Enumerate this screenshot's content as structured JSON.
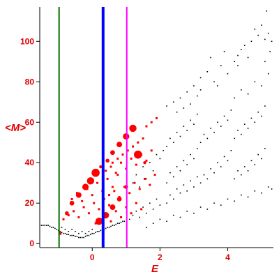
{
  "chart_data": {
    "type": "scatter",
    "xlabel": "E",
    "ylabel": "<M>",
    "xlim": [
      -1.55,
      5.35
    ],
    "ylim": [
      -2,
      117
    ],
    "xticks": [
      0,
      2,
      4
    ],
    "yticks": [
      0,
      20,
      40,
      60,
      80,
      100
    ],
    "grid": false,
    "legend": "none",
    "vlines": [
      {
        "x": -0.98,
        "color": "#007000",
        "width": "thin"
      },
      {
        "x": 0.32,
        "color": "#0000ff",
        "width": "thick"
      },
      {
        "x": 1.02,
        "color": "#ff00ff",
        "width": "thin"
      }
    ],
    "series": [
      {
        "marker": "black-dot",
        "color": "#000000",
        "description_of_spread": "fan-shaped cloud; low-E tail near M≈5-9, band widening with E",
        "points": [
          [
            -1.5,
            9
          ],
          [
            -1.45,
            9
          ],
          [
            -1.4,
            9
          ],
          [
            -1.35,
            9
          ],
          [
            -1.3,
            9
          ],
          [
            -1.25,
            8.5
          ],
          [
            -1.2,
            8
          ],
          [
            -1.15,
            8
          ],
          [
            -1.1,
            7.5
          ],
          [
            -1.05,
            7
          ],
          [
            -1.0,
            6.5
          ],
          [
            -0.95,
            6
          ],
          [
            -0.9,
            5.5
          ],
          [
            -0.85,
            5
          ],
          [
            -0.8,
            5
          ],
          [
            -0.75,
            4.5
          ],
          [
            -0.7,
            4.5
          ],
          [
            -0.65,
            4
          ],
          [
            -0.6,
            4
          ],
          [
            -0.55,
            4
          ],
          [
            -0.5,
            3.5
          ],
          [
            -0.45,
            3.5
          ],
          [
            -0.4,
            3
          ],
          [
            -0.35,
            3
          ],
          [
            -0.3,
            3
          ],
          [
            -0.25,
            3
          ],
          [
            -0.2,
            3.5
          ],
          [
            -0.15,
            4
          ],
          [
            -0.1,
            4
          ],
          [
            -0.05,
            4.5
          ],
          [
            0.0,
            5
          ],
          [
            0.05,
            5
          ],
          [
            0.1,
            5.5
          ],
          [
            0.15,
            6
          ],
          [
            0.2,
            6
          ],
          [
            0.25,
            6.5
          ],
          [
            0.3,
            7
          ],
          [
            0.35,
            7
          ],
          [
            0.4,
            7.5
          ],
          [
            0.45,
            8
          ],
          [
            0.5,
            8
          ],
          [
            0.55,
            8.5
          ],
          [
            0.6,
            9
          ],
          [
            0.65,
            9
          ],
          [
            0.7,
            9.5
          ],
          [
            0.75,
            10
          ],
          [
            0.8,
            10
          ],
          [
            0.85,
            10.5
          ],
          [
            0.9,
            11
          ],
          [
            0.95,
            11
          ],
          [
            -0.9,
            8
          ],
          [
            -0.8,
            7
          ],
          [
            -0.7,
            6
          ],
          [
            -0.6,
            7
          ],
          [
            -0.5,
            6
          ],
          [
            -0.4,
            5
          ],
          [
            -0.3,
            6
          ],
          [
            -0.2,
            5
          ],
          [
            -0.1,
            6
          ],
          [
            0.0,
            7
          ],
          [
            1.1,
            12
          ],
          [
            1.2,
            14
          ],
          [
            1.3,
            16
          ],
          [
            1.4,
            13
          ],
          [
            1.5,
            18
          ],
          [
            1.6,
            15
          ],
          [
            1.7,
            20
          ],
          [
            1.8,
            17
          ],
          [
            1.9,
            22
          ],
          [
            2.0,
            19
          ],
          [
            1.2,
            30
          ],
          [
            1.3,
            34
          ],
          [
            1.4,
            28
          ],
          [
            1.5,
            38
          ],
          [
            1.6,
            32
          ],
          [
            1.7,
            40
          ],
          [
            1.8,
            36
          ],
          [
            1.9,
            44
          ],
          [
            2.0,
            42
          ],
          [
            2.1,
            46
          ],
          [
            2.2,
            20
          ],
          [
            2.3,
            24
          ],
          [
            2.4,
            22
          ],
          [
            2.5,
            27
          ],
          [
            2.6,
            25
          ],
          [
            2.7,
            29
          ],
          [
            2.8,
            26
          ],
          [
            2.9,
            31
          ],
          [
            3.0,
            28
          ],
          [
            3.1,
            33
          ],
          [
            2.2,
            30
          ],
          [
            2.3,
            35
          ],
          [
            2.4,
            33
          ],
          [
            2.5,
            38
          ],
          [
            2.6,
            36
          ],
          [
            2.7,
            41
          ],
          [
            2.8,
            39
          ],
          [
            2.9,
            44
          ],
          [
            3.0,
            42
          ],
          [
            3.1,
            47
          ],
          [
            2.2,
            48
          ],
          [
            2.3,
            52
          ],
          [
            2.4,
            50
          ],
          [
            2.5,
            55
          ],
          [
            2.6,
            53
          ],
          [
            2.7,
            58
          ],
          [
            2.8,
            56
          ],
          [
            2.9,
            61
          ],
          [
            3.0,
            59
          ],
          [
            3.1,
            64
          ],
          [
            2.2,
            68
          ],
          [
            2.4,
            70
          ],
          [
            2.6,
            72
          ],
          [
            2.8,
            75
          ],
          [
            3.0,
            78
          ],
          [
            2.5,
            65
          ],
          [
            2.7,
            67
          ],
          [
            2.9,
            69
          ],
          [
            3.1,
            73
          ],
          [
            3.2,
            76
          ],
          [
            3.2,
            30
          ],
          [
            3.3,
            34
          ],
          [
            3.4,
            32
          ],
          [
            3.5,
            37
          ],
          [
            3.6,
            35
          ],
          [
            3.7,
            40
          ],
          [
            3.8,
            38
          ],
          [
            3.9,
            43
          ],
          [
            4.0,
            41
          ],
          [
            4.1,
            46
          ],
          [
            3.2,
            50
          ],
          [
            3.3,
            54
          ],
          [
            3.4,
            52
          ],
          [
            3.5,
            57
          ],
          [
            3.6,
            55
          ],
          [
            3.7,
            60
          ],
          [
            3.8,
            58
          ],
          [
            3.9,
            63
          ],
          [
            4.0,
            61
          ],
          [
            4.1,
            66
          ],
          [
            3.2,
            82
          ],
          [
            3.4,
            85
          ],
          [
            3.6,
            80
          ],
          [
            3.8,
            88
          ],
          [
            4.0,
            84
          ],
          [
            4.2,
            90
          ],
          [
            3.5,
            92
          ],
          [
            3.9,
            95
          ],
          [
            4.3,
            93
          ],
          [
            3.7,
            78
          ],
          [
            4.2,
            32
          ],
          [
            4.3,
            36
          ],
          [
            4.4,
            34
          ],
          [
            4.5,
            38
          ],
          [
            4.6,
            36
          ],
          [
            4.7,
            41
          ],
          [
            4.8,
            39
          ],
          [
            4.9,
            44
          ],
          [
            5.0,
            42
          ],
          [
            5.1,
            47
          ],
          [
            4.2,
            52
          ],
          [
            4.3,
            56
          ],
          [
            4.4,
            54
          ],
          [
            4.5,
            59
          ],
          [
            4.6,
            57
          ],
          [
            4.7,
            62
          ],
          [
            4.8,
            60
          ],
          [
            4.9,
            65
          ],
          [
            5.0,
            63
          ],
          [
            5.1,
            68
          ],
          [
            4.2,
            72
          ],
          [
            4.4,
            76
          ],
          [
            4.6,
            74
          ],
          [
            4.8,
            80
          ],
          [
            5.0,
            78
          ],
          [
            5.2,
            84
          ],
          [
            4.5,
            98
          ],
          [
            4.7,
            100
          ],
          [
            4.9,
            103
          ],
          [
            5.1,
            101
          ],
          [
            4.4,
            96
          ],
          [
            4.8,
            106
          ],
          [
            5.0,
            108
          ],
          [
            5.2,
            104
          ],
          [
            5.3,
            100
          ],
          [
            4.3,
            88
          ],
          [
            4.6,
            92
          ],
          [
            5.1,
            90
          ],
          [
            5.25,
            95
          ],
          [
            5.15,
            115
          ],
          [
            1.6,
            8
          ],
          [
            1.8,
            10
          ],
          [
            2.0,
            12
          ],
          [
            2.2,
            11
          ],
          [
            2.4,
            14
          ],
          [
            2.6,
            13
          ],
          [
            2.8,
            16
          ],
          [
            3.0,
            15
          ],
          [
            3.2,
            18
          ],
          [
            3.4,
            17
          ],
          [
            3.6,
            20
          ],
          [
            3.8,
            19
          ],
          [
            4.0,
            22
          ],
          [
            4.2,
            21
          ],
          [
            4.4,
            24
          ],
          [
            4.6,
            23
          ],
          [
            4.8,
            26
          ],
          [
            5.0,
            25
          ],
          [
            5.2,
            28
          ],
          [
            5.3,
            27
          ]
        ]
      },
      {
        "marker": "red-square-small",
        "color": "#ff0000",
        "points": [
          [
            -0.85,
            12
          ],
          [
            -0.7,
            14
          ],
          [
            -0.55,
            16
          ],
          [
            -0.4,
            13
          ],
          [
            -0.25,
            18
          ],
          [
            -0.1,
            15
          ],
          [
            0.05,
            20
          ],
          [
            0.2,
            17
          ],
          [
            0.35,
            22
          ],
          [
            0.5,
            19
          ],
          [
            -0.6,
            22
          ],
          [
            -0.45,
            25
          ],
          [
            -0.3,
            21
          ],
          [
            -0.15,
            27
          ],
          [
            0.0,
            24
          ],
          [
            0.15,
            30
          ],
          [
            0.3,
            26
          ],
          [
            0.45,
            32
          ],
          [
            0.6,
            28
          ],
          [
            0.75,
            34
          ],
          [
            0.1,
            10
          ],
          [
            0.25,
            12
          ],
          [
            0.4,
            14
          ],
          [
            0.55,
            11
          ],
          [
            0.7,
            16
          ],
          [
            0.85,
            13
          ],
          [
            1.0,
            18
          ],
          [
            1.15,
            15
          ],
          [
            1.3,
            20
          ],
          [
            1.45,
            17
          ],
          [
            0.4,
            36
          ],
          [
            0.55,
            38
          ],
          [
            0.7,
            35
          ],
          [
            0.85,
            40
          ],
          [
            1.0,
            37
          ],
          [
            1.15,
            42
          ],
          [
            1.3,
            39
          ],
          [
            1.45,
            44
          ],
          [
            1.6,
            41
          ],
          [
            1.75,
            46
          ],
          [
            0.5,
            24
          ],
          [
            0.65,
            26
          ],
          [
            0.8,
            23
          ],
          [
            0.95,
            28
          ],
          [
            1.1,
            25
          ],
          [
            1.25,
            30
          ],
          [
            1.4,
            27
          ],
          [
            1.55,
            32
          ],
          [
            1.7,
            29
          ],
          [
            1.85,
            34
          ],
          [
            1.6,
            58
          ],
          [
            1.75,
            60
          ],
          [
            1.9,
            62
          ],
          [
            1.2,
            48
          ],
          [
            1.35,
            50
          ],
          [
            1.5,
            52
          ],
          [
            0.9,
            44
          ],
          [
            1.05,
            46
          ],
          [
            0.6,
            40
          ],
          [
            0.75,
            42
          ]
        ]
      },
      {
        "marker": "red-circle-large",
        "color": "#ff0000",
        "points": [
          [
            -0.95,
            5
          ],
          [
            -0.75,
            15
          ],
          [
            -0.6,
            20
          ],
          [
            -0.4,
            24
          ],
          [
            -0.2,
            28
          ],
          [
            -0.05,
            31
          ],
          [
            0.1,
            35
          ],
          [
            0.25,
            38
          ],
          [
            0.45,
            41
          ],
          [
            0.6,
            45
          ],
          [
            0.8,
            49
          ],
          [
            1.0,
            53
          ],
          [
            1.2,
            57
          ],
          [
            1.35,
            44
          ],
          [
            1.55,
            40
          ],
          [
            1.0,
            28
          ],
          [
            0.8,
            22
          ],
          [
            0.6,
            18
          ],
          [
            0.4,
            14
          ],
          [
            0.2,
            11
          ]
        ]
      }
    ]
  }
}
